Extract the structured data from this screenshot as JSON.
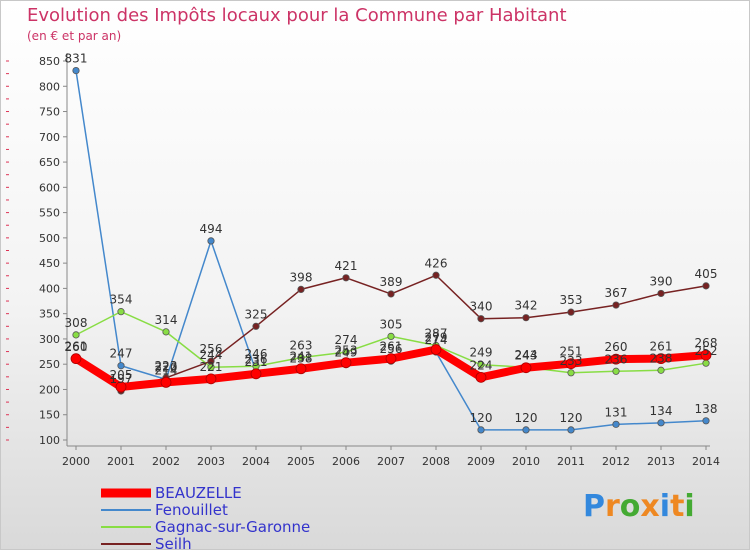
{
  "chart_data": {
    "type": "line",
    "title": "Evolution des Impôts locaux pour la Commune par Habitant",
    "subtitle": "(en € et par an)",
    "xlabel": "",
    "ylabel": "",
    "ylim": [
      100,
      850
    ],
    "y_ticks": [
      100,
      150,
      200,
      250,
      300,
      350,
      400,
      450,
      500,
      550,
      600,
      650,
      700,
      750,
      800,
      850
    ],
    "x": [
      "2000",
      "2001",
      "2002",
      "2003",
      "2004",
      "2005",
      "2006",
      "2007",
      "2008",
      "2009",
      "2010",
      "2011",
      "2012",
      "2013",
      "2014"
    ],
    "grid": false,
    "legend_position": "bottom-left",
    "series": [
      {
        "name": "BEAUZELLE",
        "color": "#ff0000",
        "values": [
          261,
          205,
          214,
          221,
          231,
          241,
          253,
          261,
          279,
          224,
          243,
          251,
          260,
          261,
          268
        ]
      },
      {
        "name": "Fenouillet",
        "color": "#4488cc",
        "values": [
          831,
          247,
          220,
          494,
          236,
          238,
          249,
          256,
          274,
          120,
          120,
          120,
          131,
          134,
          138
        ]
      },
      {
        "name": "Gagnac-sur-Garonne",
        "color": "#88dd44",
        "values": [
          308,
          354,
          314,
          244,
          246,
          263,
          274,
          305,
          287,
          249,
          244,
          233,
          236,
          238,
          252
        ]
      },
      {
        "name": "Seilh",
        "color": "#772222",
        "values": [
          260,
          197,
          223,
          256,
          325,
          398,
          421,
          389,
          426,
          340,
          342,
          353,
          367,
          390,
          405
        ]
      }
    ]
  },
  "branding": {
    "logo": "Proxiti"
  }
}
